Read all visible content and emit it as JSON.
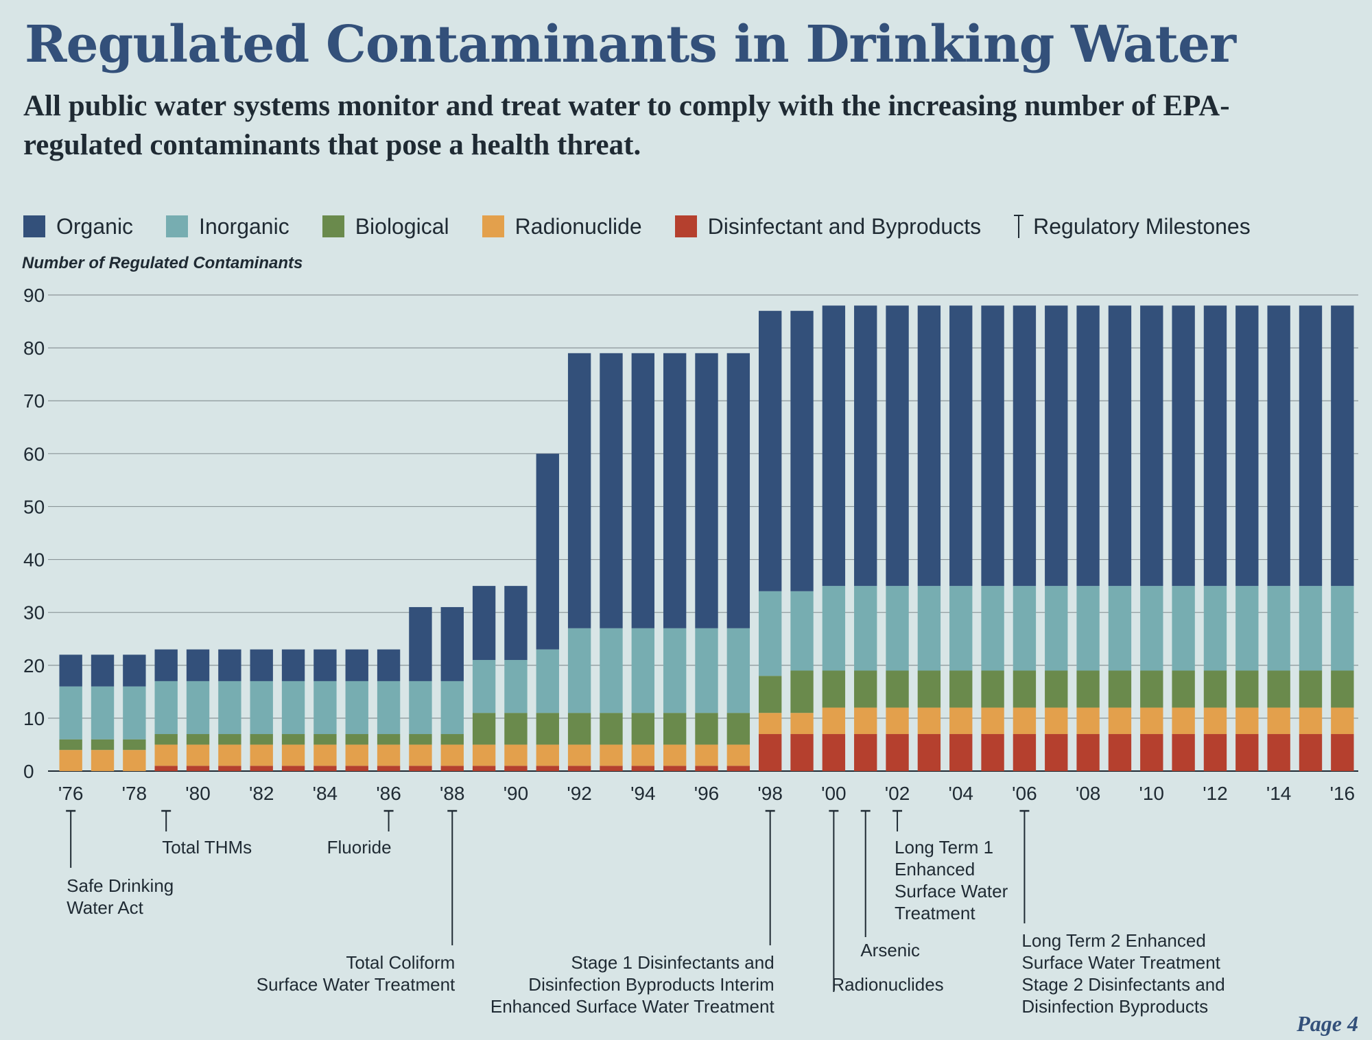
{
  "title": "Regulated Contaminants in Drinking Water",
  "subtitle": "All public water systems monitor and treat water to comply with the increasing number of EPA-regulated contaminants that pose a health threat.",
  "legend": [
    {
      "label": "Organic",
      "color": "#33507a"
    },
    {
      "label": "Inorganic",
      "color": "#77adb1"
    },
    {
      "label": "Biological",
      "color": "#6a8a4c"
    },
    {
      "label": "Radionuclide",
      "color": "#e3a04c"
    },
    {
      "label": "Disinfectant and Byproducts",
      "color": "#b5402e"
    },
    {
      "label": "Regulatory Milestones",
      "icon": "milestone-tick-icon"
    }
  ],
  "page_label": "Page 4",
  "chart_data": {
    "type": "bar",
    "stacked": true,
    "ylabel": "Number of Regulated Contaminants",
    "ylim": [
      0,
      90
    ],
    "yticks": [
      0,
      10,
      20,
      30,
      40,
      50,
      60,
      70,
      80,
      90
    ],
    "grid": true,
    "legend_position": "top",
    "categories": [
      "1976",
      "1977",
      "1978",
      "1979",
      "1980",
      "1981",
      "1982",
      "1983",
      "1984",
      "1985",
      "1986",
      "1987",
      "1988",
      "1989",
      "1990",
      "1991",
      "1992",
      "1993",
      "1994",
      "1995",
      "1996",
      "1997",
      "1998",
      "1999",
      "2000",
      "2001",
      "2002",
      "2003",
      "2004",
      "2005",
      "2006",
      "2007",
      "2008",
      "2009",
      "2010",
      "2011",
      "2012",
      "2013",
      "2014",
      "2015",
      "2016"
    ],
    "xtick_labels": [
      "'76",
      "",
      "'78",
      "",
      "'80",
      "",
      "'82",
      "",
      "'84",
      "",
      "'86",
      "",
      "'88",
      "",
      "'90",
      "",
      "'92",
      "",
      "'94",
      "",
      "'96",
      "",
      "'98",
      "",
      "'00",
      "",
      "'02",
      "",
      "'04",
      "",
      "'06",
      "",
      "'08",
      "",
      "'10",
      "",
      "'12",
      "",
      "'14",
      "",
      "'16"
    ],
    "series": [
      {
        "name": "Disinfectant and Byproducts",
        "color": "#b5402e",
        "values": [
          0,
          0,
          0,
          1,
          1,
          1,
          1,
          1,
          1,
          1,
          1,
          1,
          1,
          1,
          1,
          1,
          1,
          1,
          1,
          1,
          1,
          1,
          7,
          7,
          7,
          7,
          7,
          7,
          7,
          7,
          7,
          7,
          7,
          7,
          7,
          7,
          7,
          7,
          7,
          7,
          7
        ]
      },
      {
        "name": "Radionuclide",
        "color": "#e3a04c",
        "values": [
          4,
          4,
          4,
          4,
          4,
          4,
          4,
          4,
          4,
          4,
          4,
          4,
          4,
          4,
          4,
          4,
          4,
          4,
          4,
          4,
          4,
          4,
          4,
          4,
          5,
          5,
          5,
          5,
          5,
          5,
          5,
          5,
          5,
          5,
          5,
          5,
          5,
          5,
          5,
          5,
          5
        ]
      },
      {
        "name": "Biological",
        "color": "#6a8a4c",
        "values": [
          2,
          2,
          2,
          2,
          2,
          2,
          2,
          2,
          2,
          2,
          2,
          2,
          2,
          6,
          6,
          6,
          6,
          6,
          6,
          6,
          6,
          6,
          7,
          8,
          7,
          7,
          7,
          7,
          7,
          7,
          7,
          7,
          7,
          7,
          7,
          7,
          7,
          7,
          7,
          7,
          7
        ]
      },
      {
        "name": "Inorganic",
        "color": "#77adb1",
        "values": [
          10,
          10,
          10,
          10,
          10,
          10,
          10,
          10,
          10,
          10,
          10,
          10,
          10,
          10,
          10,
          12,
          16,
          16,
          16,
          16,
          16,
          16,
          16,
          15,
          16,
          16,
          16,
          16,
          16,
          16,
          16,
          16,
          16,
          16,
          16,
          16,
          16,
          16,
          16,
          16,
          16
        ]
      },
      {
        "name": "Organic",
        "color": "#33507a",
        "values": [
          6,
          6,
          6,
          6,
          6,
          6,
          6,
          6,
          6,
          6,
          6,
          14,
          14,
          14,
          14,
          37,
          52,
          52,
          52,
          52,
          52,
          52,
          53,
          53,
          53,
          53,
          53,
          53,
          53,
          53,
          53,
          53,
          53,
          53,
          53,
          53,
          53,
          53,
          53,
          53,
          53
        ]
      }
    ],
    "milestones": [
      {
        "year": 1976,
        "lines": [
          "Safe Drinking",
          "Water Act"
        ],
        "align": "left"
      },
      {
        "year": 1979,
        "lines": [
          "Total THMs"
        ],
        "align": "left"
      },
      {
        "year": 1986,
        "lines": [
          "Fluoride"
        ],
        "align": "right"
      },
      {
        "year": 1988,
        "lines": [
          "Total Coliform",
          "Surface Water Treatment"
        ],
        "align": "right"
      },
      {
        "year": 1998,
        "lines": [
          "Stage 1 Disinfectants and",
          "Disinfection Byproducts Interim",
          "Enhanced Surface Water Treatment"
        ],
        "align": "right"
      },
      {
        "year": 2000,
        "lines": [
          "Radionuclides"
        ],
        "align": "left"
      },
      {
        "year": 2001,
        "lines": [
          "Arsenic"
        ],
        "align": "center"
      },
      {
        "year": 2002,
        "lines": [
          "Long Term 1",
          "Enhanced",
          "Surface Water",
          "Treatment"
        ],
        "align": "left"
      },
      {
        "year": 2006,
        "lines": [
          "Long Term 2 Enhanced",
          "Surface Water Treatment",
          "Stage 2 Disinfectants and",
          "Disinfection Byproducts"
        ],
        "align": "left"
      }
    ]
  }
}
